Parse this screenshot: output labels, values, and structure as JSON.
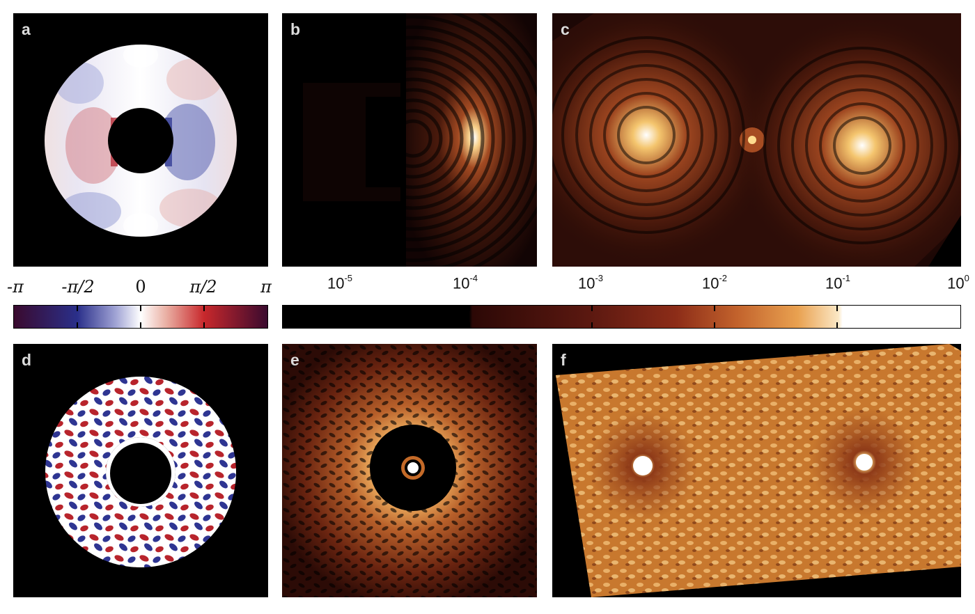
{
  "panels": [
    {
      "id": "a",
      "label": "a",
      "kind": "phase-map-annulus"
    },
    {
      "id": "b",
      "label": "b",
      "kind": "log-intensity-half"
    },
    {
      "id": "c",
      "label": "c",
      "kind": "log-intensity-double"
    },
    {
      "id": "d",
      "label": "d",
      "kind": "phase-map-speckle"
    },
    {
      "id": "e",
      "label": "e",
      "kind": "log-intensity-ring"
    },
    {
      "id": "f",
      "label": "f",
      "kind": "log-intensity-double-speckle"
    }
  ],
  "phase_colorbar": {
    "ticks": [
      "-π",
      "-π/2",
      "0",
      "π/2",
      "π"
    ],
    "colors": [
      "#3a0a2e",
      "#2a2f8a",
      "#ffffff",
      "#c8282c",
      "#3a0a2e"
    ]
  },
  "log_colorbar": {
    "ticks": [
      {
        "base": "10",
        "exp": "-5"
      },
      {
        "base": "10",
        "exp": "-4"
      },
      {
        "base": "10",
        "exp": "-3"
      },
      {
        "base": "10",
        "exp": "-2"
      },
      {
        "base": "10",
        "exp": "-1"
      },
      {
        "base": "10",
        "exp": "0"
      }
    ],
    "colors": [
      "#000000",
      "#3a0a06",
      "#8a2a14",
      "#d27a30",
      "#fff4e0",
      "#ffffff"
    ]
  }
}
